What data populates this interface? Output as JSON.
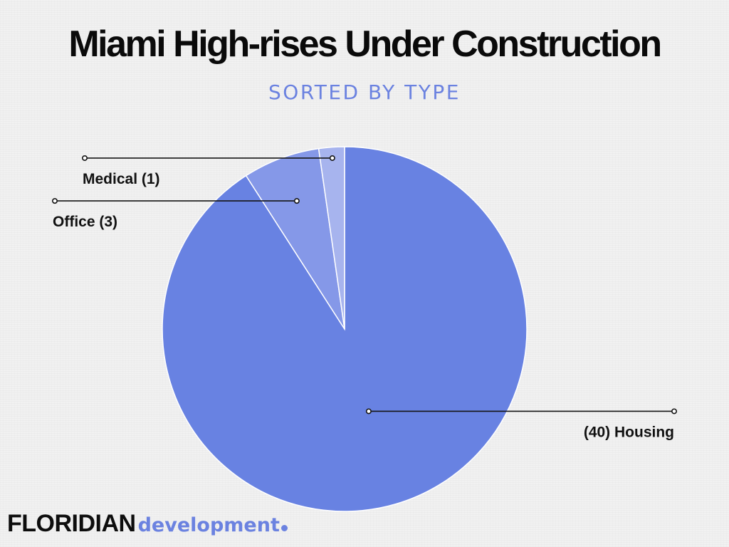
{
  "header": {
    "title": "Miami High-rises Under Construction",
    "subtitle": "SORTED BY TYPE"
  },
  "chart_data": {
    "type": "pie",
    "slices": [
      {
        "label": "(40) Housing",
        "category": "Housing",
        "value": 40,
        "color": "#6882e2"
      },
      {
        "label": "Office (3)",
        "category": "Office",
        "value": 3,
        "color": "#8598e8"
      },
      {
        "label": "Medical (1)",
        "category": "Medical",
        "value": 1,
        "color": "#a7b4ee"
      }
    ],
    "start": "12 o'clock",
    "direction": "clockwise",
    "legend": "none"
  },
  "branding": {
    "name": "FLORIDIAN",
    "suffix": "development"
  }
}
